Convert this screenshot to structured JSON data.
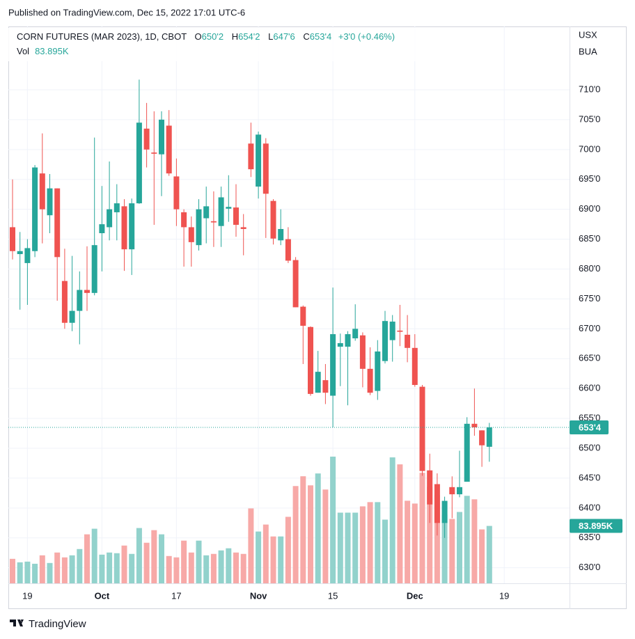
{
  "header": {
    "published": "Published on TradingView.com, Dec 15, 2022 17:01 UTC-6"
  },
  "chart_data": {
    "type": "candlestick",
    "title": "CORN FUTURES (MAR 2023), 1D, CBOT",
    "ohlc_keys": [
      "O",
      "H",
      "L",
      "C"
    ],
    "ohlc_labels": [
      "650'2",
      "654'2",
      "647'6",
      "653'4"
    ],
    "change": "+3'0 (+0.46%)",
    "volume_title": "Vol",
    "volume_label": "83.895K",
    "currency": "USX",
    "unit": "BUA",
    "categories": [
      null,
      null,
      "19",
      null,
      null,
      null,
      null,
      null,
      null,
      null,
      null,
      null,
      "Oct",
      null,
      null,
      null,
      null,
      null,
      null,
      null,
      null,
      null,
      "17",
      null,
      null,
      null,
      null,
      null,
      null,
      null,
      null,
      null,
      null,
      "Nov",
      null,
      null,
      null,
      null,
      null,
      null,
      null,
      null,
      null,
      "15",
      null,
      null,
      null,
      null,
      null,
      null,
      null,
      null,
      null,
      null,
      "Dec",
      null,
      null,
      null,
      null,
      null,
      null,
      null,
      null,
      null,
      null,
      null,
      "19"
    ],
    "open": [
      687,
      682.5,
      681,
      683,
      696,
      689,
      693.5,
      678,
      671,
      673,
      676.5,
      676,
      686,
      687,
      689.5,
      690.5,
      683.3,
      691,
      703.5,
      699.5,
      699.2,
      704,
      695.5,
      689.5,
      687,
      684,
      688.5,
      688,
      687.2,
      690.1,
      690.3,
      687,
      701,
      693.8,
      701,
      691.4,
      684.8,
      685,
      681.5,
      673.7,
      670.3,
      659.3,
      661.4,
      658.8,
      667,
      667,
      668.4,
      668.9,
      663.3,
      659.6,
      664.6,
      668.1,
      669.7,
      669,
      666.8,
      660.3,
      646.3,
      644,
      637.5,
      643.5,
      642.3,
      644.4,
      654.1,
      653,
      650.25,
      null,
      null
    ],
    "high": [
      695,
      686.2,
      685,
      697.4,
      702.7,
      695.9,
      693.5,
      683.4,
      682.2,
      679.6,
      683.8,
      702,
      693.9,
      698,
      694.2,
      691.7,
      691.8,
      711.7,
      707.8,
      706.4,
      706.4,
      706.6,
      698.5,
      690,
      688.8,
      691.7,
      693.8,
      693,
      693.8,
      695.7,
      694.2,
      689.2,
      704.5,
      703,
      701.9,
      691.7,
      690,
      687,
      682,
      673.9,
      670.4,
      666.3,
      664.1,
      676.9,
      669.2,
      669.6,
      674.1,
      669.4,
      666.9,
      668.1,
      673,
      672.3,
      674,
      672.3,
      669.1,
      660.6,
      649.1,
      645.8,
      641.9,
      645.3,
      649.6,
      655.2,
      660,
      653,
      654.25,
      null,
      null
    ],
    "low": [
      681.6,
      673.2,
      674,
      682,
      684.3,
      686,
      674.7,
      670,
      669.6,
      667.4,
      673,
      675.6,
      679.6,
      684.8,
      684.8,
      679.7,
      679,
      690.9,
      697,
      687.4,
      692.2,
      695.6,
      687.2,
      680.4,
      680.4,
      683.1,
      684.3,
      683.7,
      683.7,
      687.9,
      685.4,
      682.3,
      695.4,
      691.8,
      685.2,
      684.1,
      684,
      681,
      673.6,
      664.1,
      658.8,
      659.3,
      657.4,
      653.5,
      660.4,
      657.2,
      668,
      660.2,
      658.9,
      658.1,
      664.2,
      664.5,
      667.1,
      664.4,
      660.3,
      645.4,
      637.5,
      635.4,
      635,
      638.3,
      641.8,
      644.4,
      652.1,
      646.9,
      647.75,
      null,
      null
    ],
    "close": [
      683,
      683,
      683.5,
      697,
      690,
      693.5,
      682,
      671,
      673,
      676.5,
      676,
      684,
      687.5,
      690,
      691,
      683.3,
      691,
      704.5,
      700,
      699.3,
      705,
      696,
      690,
      687,
      684.5,
      690,
      690.5,
      687.8,
      692,
      690.4,
      687.4,
      686.7,
      696.7,
      702.5,
      692.6,
      685.1,
      686.7,
      681.4,
      673.6,
      670.5,
      659.1,
      662.8,
      659.3,
      669.1,
      667.6,
      669.1,
      670,
      663.3,
      659.3,
      666.2,
      671.3,
      671.2,
      669.5,
      666.8,
      660.6,
      646.2,
      640.6,
      637.5,
      641.2,
      642.3,
      643.5,
      654.1,
      653.5,
      650.5,
      653.5,
      null,
      null
    ],
    "volume": [
      35800,
      30700,
      31700,
      28600,
      40900,
      29700,
      45000,
      37900,
      40900,
      50100,
      71600,
      79800,
      41900,
      45000,
      44000,
      55200,
      43000,
      80800,
      59300,
      77700,
      71600,
      39900,
      37900,
      62400,
      45000,
      62400,
      40900,
      43000,
      48100,
      51200,
      45000,
      43000,
      109500,
      75700,
      85900,
      68500,
      68500,
      97200,
      142200,
      156500,
      143200,
      160600,
      137100,
      185200,
      103300,
      103300,
      103300,
      112500,
      118700,
      118700,
      93100,
      184100,
      173900,
      120700,
      116600,
      161600,
      141200,
      128900,
      100300,
      94100,
      104300,
      127900,
      122800,
      78800,
      83895,
      null,
      null
    ],
    "up_color": "#26a69a",
    "down_color": "#ef5350",
    "volume_up_color": "#92d2cc",
    "volume_down_color": "#f7a9a7",
    "ylim": [
      627.4,
      720.6
    ],
    "yticks": [
      {
        "value": 630,
        "label": "630'0"
      },
      {
        "value": 635,
        "label": "635'0"
      },
      {
        "value": 640,
        "label": "640'0"
      },
      {
        "value": 645,
        "label": "645'0"
      },
      {
        "value": 650,
        "label": "650'0"
      },
      {
        "value": 655,
        "label": "655'0"
      },
      {
        "value": 660,
        "label": "660'0"
      },
      {
        "value": 665,
        "label": "665'0"
      },
      {
        "value": 670,
        "label": "670'0"
      },
      {
        "value": 675,
        "label": "675'0"
      },
      {
        "value": 680,
        "label": "680'0"
      },
      {
        "value": 685,
        "label": "685'0"
      },
      {
        "value": 690,
        "label": "690'0"
      },
      {
        "value": 695,
        "label": "695'0"
      },
      {
        "value": 700,
        "label": "700'0"
      },
      {
        "value": 705,
        "label": "705'0"
      },
      {
        "value": 710,
        "label": "710'0"
      }
    ],
    "grid": true,
    "last_price": {
      "value": 653.5,
      "label": "653'4"
    },
    "last_volume": {
      "value": 83895,
      "label": "83.895K"
    }
  },
  "footer": {
    "brand": "TradingView"
  }
}
